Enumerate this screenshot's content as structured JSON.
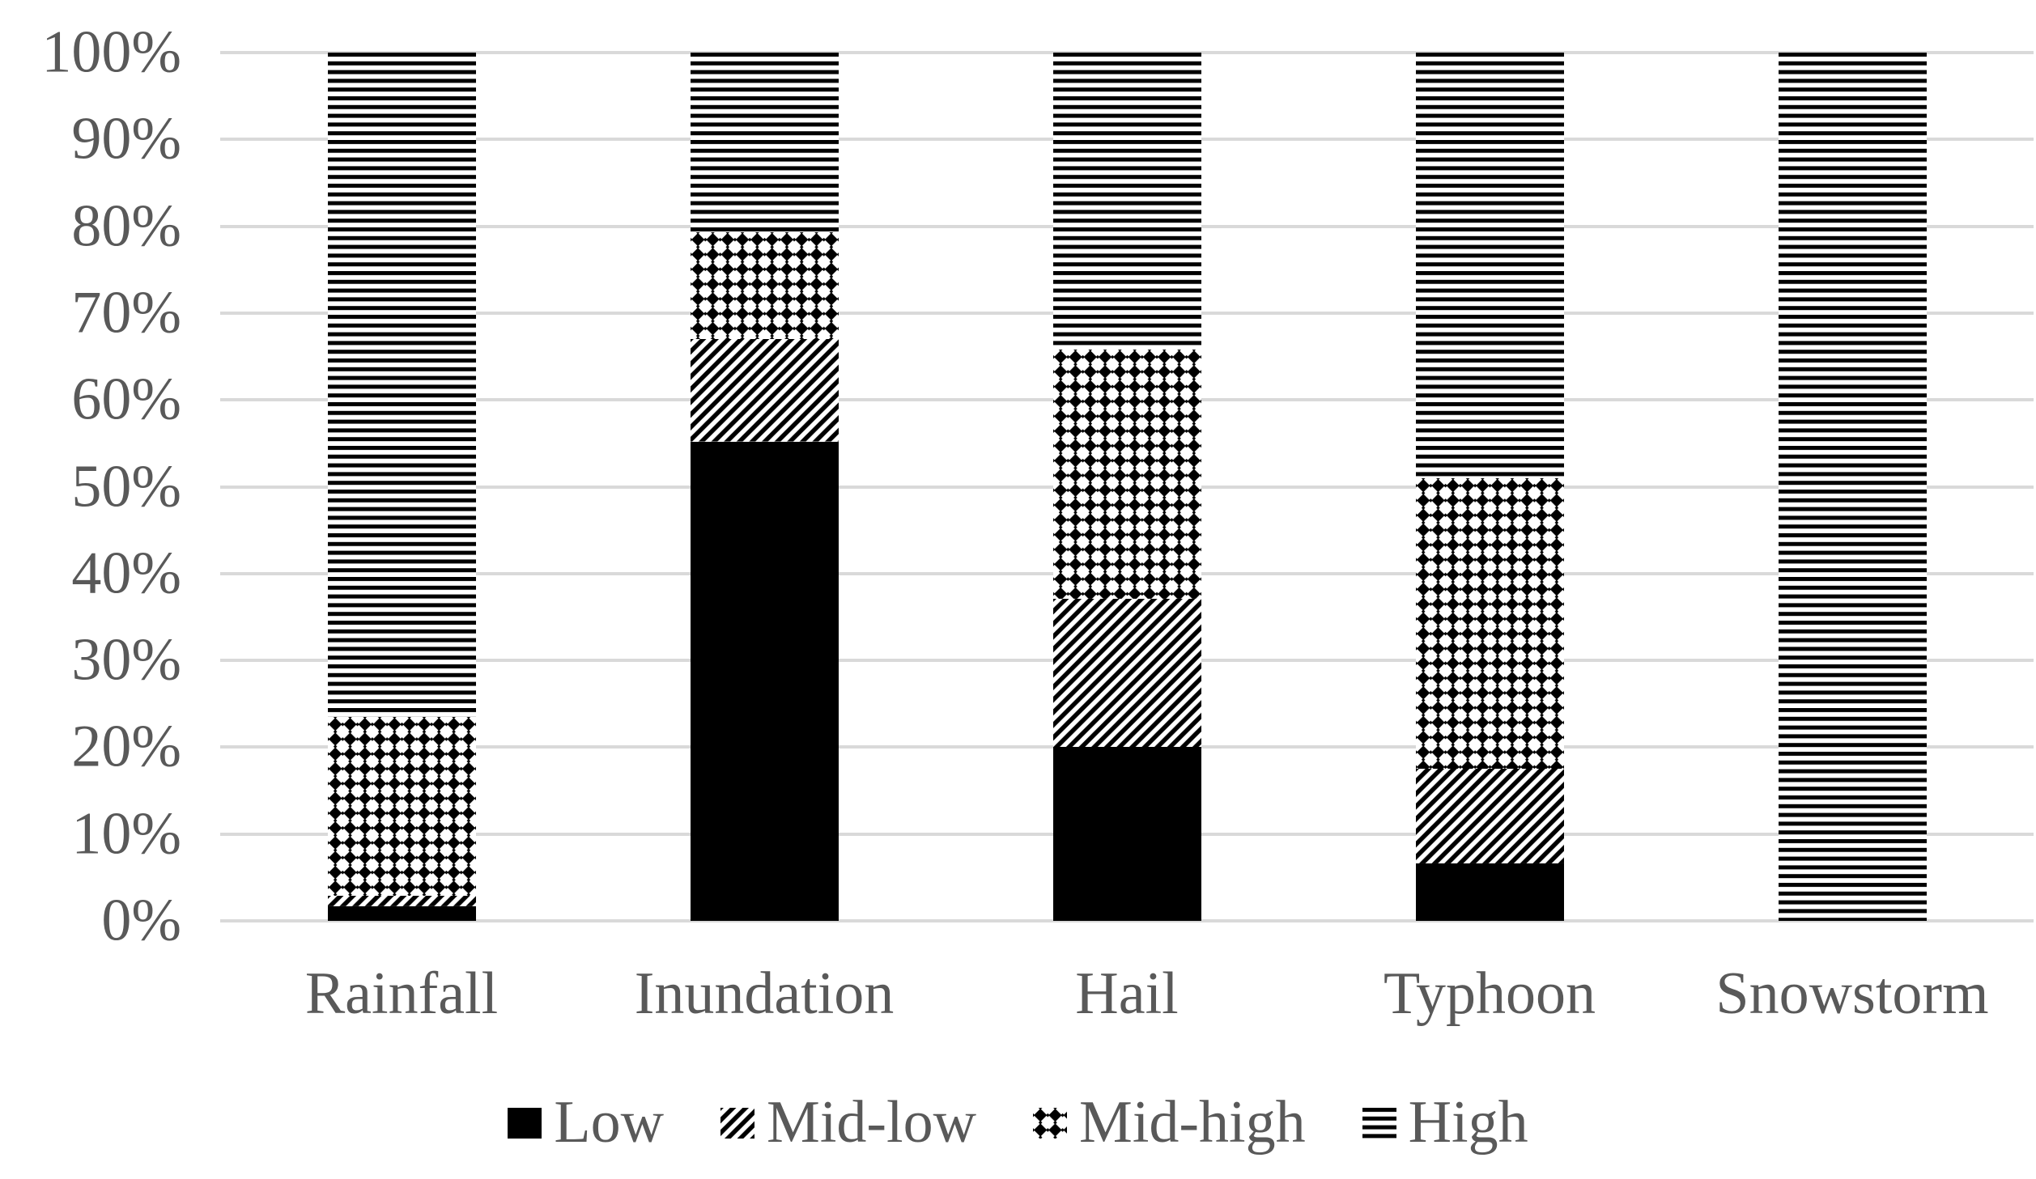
{
  "chart_data": {
    "type": "bar",
    "variant": "stacked-100-percent",
    "title": "",
    "xlabel": "",
    "ylabel": "",
    "categories": [
      "Rainfall",
      "Inundation",
      "Hail",
      "Typhoon",
      "Snowstorm"
    ],
    "series": [
      {
        "name": "Low",
        "pattern": "solid-black",
        "values": [
          1.7,
          55.2,
          20.0,
          6.6,
          0
        ]
      },
      {
        "name": "Mid-low",
        "pattern": "diagonal-hatch",
        "values": [
          1.2,
          11.8,
          17.1,
          10.9,
          0
        ]
      },
      {
        "name": "Mid-high",
        "pattern": "diamond-grid",
        "values": [
          20.6,
          12.3,
          28.7,
          33.5,
          0
        ]
      },
      {
        "name": "High",
        "pattern": "horizontal-stripes",
        "values": [
          76.5,
          20.7,
          34.2,
          49.0,
          100
        ]
      }
    ],
    "y_axis": {
      "min": 0,
      "max": 100,
      "step": 10,
      "ticks": [
        "0%",
        "10%",
        "20%",
        "30%",
        "40%",
        "50%",
        "60%",
        "70%",
        "80%",
        "90%",
        "100%"
      ]
    },
    "legend": {
      "position": "bottom",
      "entries": [
        "Low",
        "Mid-low",
        "Mid-high",
        "High"
      ]
    },
    "grid": "horizontal",
    "colors": {
      "pattern_foreground": "#000000",
      "pattern_background": "#ffffff",
      "gridline": "#d9d9d9",
      "label_text": "#595959",
      "page_background": "#ffffff"
    }
  }
}
